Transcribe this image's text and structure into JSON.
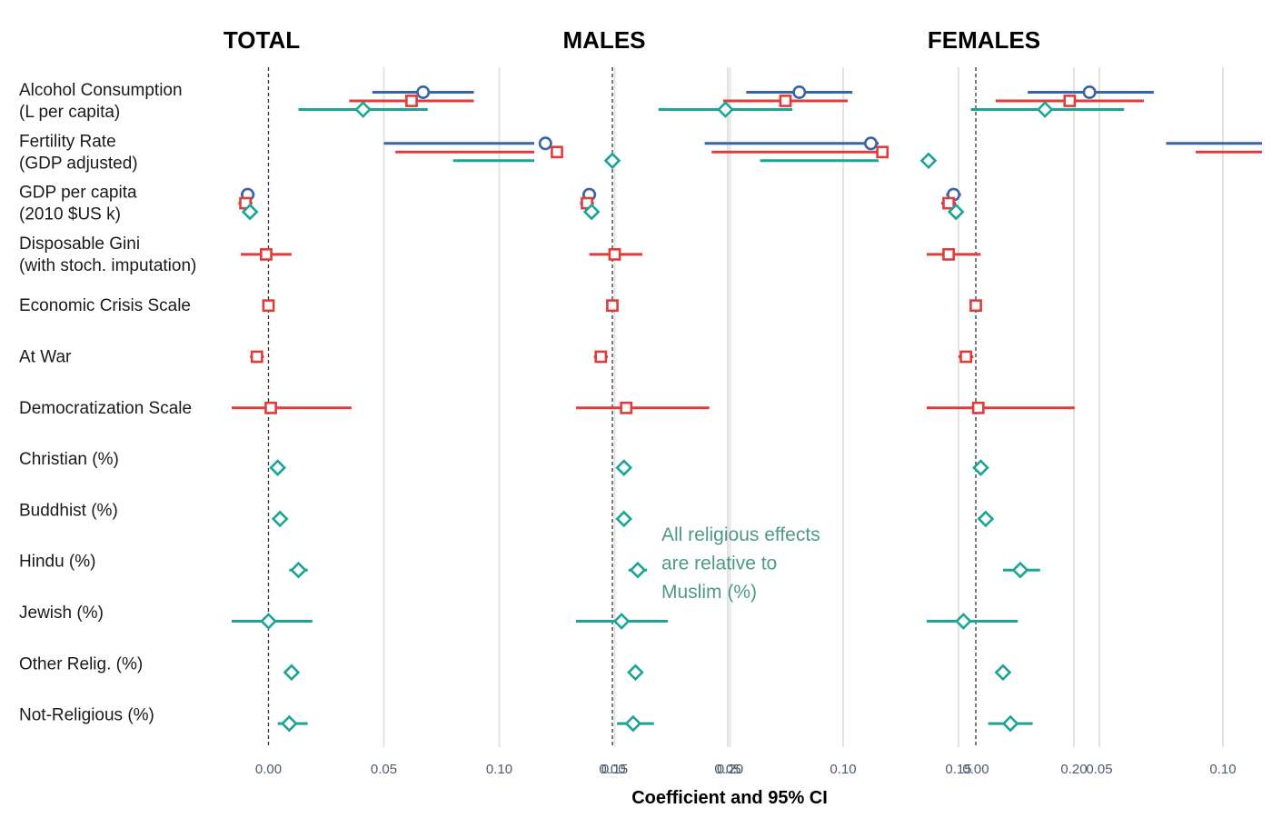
{
  "chart_data": {
    "type": "scatter",
    "x_axis_title": "Coefficient and 95% CI",
    "x_ticks": [
      "0.00",
      "0.05",
      "0.10",
      "0.15",
      "0.20"
    ],
    "x_tick_values": [
      0,
      0.05,
      0.1,
      0.15,
      0.2
    ],
    "xlim": [
      -0.105,
      0.228
    ],
    "annotation": [
      "All religious effects",
      "are relative to",
      "Muslim (%)"
    ],
    "colors": {
      "model1": "#3a64a8",
      "model2": "#e03c3c",
      "model3": "#1aa596"
    },
    "markers": {
      "model1": "circle",
      "model2": "square",
      "model3": "diamond"
    },
    "rows": [
      [
        "Alcohol Consumption",
        "(L per capita)"
      ],
      [
        "Fertility Rate",
        "(GDP adjusted)"
      ],
      [
        "GDP per capita",
        "(2010 $US k)"
      ],
      [
        "Disposable Gini",
        "(with stoch. imputation)"
      ],
      [
        "Economic Crisis Scale"
      ],
      [
        "At War"
      ],
      [
        "Democratization Scale"
      ],
      [
        "Christian (%)"
      ],
      [
        "Buddhist (%)"
      ],
      [
        "Hindu (%)"
      ],
      [
        "Jewish (%)"
      ],
      [
        "Other Relig. (%)"
      ],
      [
        "Not-Religious (%)"
      ]
    ],
    "panels": [
      {
        "title": "TOTAL",
        "estimates": [
          {
            "row": 0,
            "model": "model1",
            "est": 0.067,
            "lo": 0.045,
            "hi": 0.089
          },
          {
            "row": 0,
            "model": "model2",
            "est": 0.062,
            "lo": 0.035,
            "hi": 0.089
          },
          {
            "row": 0,
            "model": "model3",
            "est": 0.041,
            "lo": 0.013,
            "hi": 0.069
          },
          {
            "row": 1,
            "model": "model1",
            "est": 0.12,
            "lo": 0.05,
            "hi": 0.19
          },
          {
            "row": 1,
            "model": "model2",
            "est": 0.125,
            "lo": 0.055,
            "hi": 0.197
          },
          {
            "row": 1,
            "model": "model3",
            "est": 0.149,
            "lo": 0.08,
            "hi": 0.219
          },
          {
            "row": 2,
            "model": "model1",
            "est": -0.009,
            "lo": -0.012,
            "hi": -0.006
          },
          {
            "row": 2,
            "model": "model2",
            "est": -0.01,
            "lo": -0.013,
            "hi": -0.007
          },
          {
            "row": 2,
            "model": "model3",
            "est": -0.008,
            "lo": -0.011,
            "hi": -0.005
          },
          {
            "row": 3,
            "model": "model2",
            "est": -0.001,
            "lo": -0.012,
            "hi": 0.01
          },
          {
            "row": 4,
            "model": "model2",
            "est": 0.0,
            "lo": -0.002,
            "hi": 0.002
          },
          {
            "row": 5,
            "model": "model2",
            "est": -0.005,
            "lo": -0.008,
            "hi": -0.002
          },
          {
            "row": 6,
            "model": "model2",
            "est": 0.001,
            "lo": -0.031,
            "hi": 0.036
          },
          {
            "row": 7,
            "model": "model3",
            "est": 0.004,
            "lo": 0.002,
            "hi": 0.006
          },
          {
            "row": 8,
            "model": "model3",
            "est": 0.005,
            "lo": 0.003,
            "hi": 0.007
          },
          {
            "row": 9,
            "model": "model3",
            "est": 0.013,
            "lo": 0.009,
            "hi": 0.017
          },
          {
            "row": 10,
            "model": "model3",
            "est": 0.0,
            "lo": -0.018,
            "hi": 0.019
          },
          {
            "row": 11,
            "model": "model3",
            "est": 0.01,
            "lo": 0.007,
            "hi": 0.013
          },
          {
            "row": 12,
            "model": "model3",
            "est": 0.009,
            "lo": 0.004,
            "hi": 0.017
          }
        ]
      },
      {
        "title": "MALES",
        "estimates": [
          {
            "row": 0,
            "model": "model1",
            "est": 0.081,
            "lo": 0.058,
            "hi": 0.104
          },
          {
            "row": 0,
            "model": "model2",
            "est": 0.075,
            "lo": 0.048,
            "hi": 0.102
          },
          {
            "row": 0,
            "model": "model3",
            "est": 0.049,
            "lo": 0.02,
            "hi": 0.078
          },
          {
            "row": 1,
            "model": "model1",
            "est": 0.112,
            "lo": 0.04,
            "hi": 0.184
          },
          {
            "row": 1,
            "model": "model2",
            "est": 0.117,
            "lo": 0.043,
            "hi": 0.191
          },
          {
            "row": 1,
            "model": "model3",
            "est": 0.137,
            "lo": 0.064,
            "hi": 0.21
          },
          {
            "row": 2,
            "model": "model1",
            "est": -0.01,
            "lo": -0.013,
            "hi": -0.007
          },
          {
            "row": 2,
            "model": "model2",
            "est": -0.011,
            "lo": -0.014,
            "hi": -0.008
          },
          {
            "row": 2,
            "model": "model3",
            "est": -0.009,
            "lo": -0.012,
            "hi": -0.006
          },
          {
            "row": 3,
            "model": "model2",
            "est": 0.001,
            "lo": -0.01,
            "hi": 0.013
          },
          {
            "row": 4,
            "model": "model2",
            "est": 0.0,
            "lo": -0.002,
            "hi": 0.002
          },
          {
            "row": 5,
            "model": "model2",
            "est": -0.005,
            "lo": -0.008,
            "hi": -0.002
          },
          {
            "row": 6,
            "model": "model2",
            "est": 0.006,
            "lo": -0.028,
            "hi": 0.042
          },
          {
            "row": 7,
            "model": "model3",
            "est": 0.005,
            "lo": 0.003,
            "hi": 0.007
          },
          {
            "row": 8,
            "model": "model3",
            "est": 0.005,
            "lo": 0.003,
            "hi": 0.007
          },
          {
            "row": 9,
            "model": "model3",
            "est": 0.011,
            "lo": 0.007,
            "hi": 0.015
          },
          {
            "row": 10,
            "model": "model3",
            "est": 0.004,
            "lo": -0.016,
            "hi": 0.024
          },
          {
            "row": 11,
            "model": "model3",
            "est": 0.01,
            "lo": 0.007,
            "hi": 0.013
          },
          {
            "row": 12,
            "model": "model3",
            "est": 0.009,
            "lo": 0.002,
            "hi": 0.018
          }
        ]
      },
      {
        "title": "FEMALES",
        "estimates": [
          {
            "row": 0,
            "model": "model1",
            "est": 0.046,
            "lo": 0.021,
            "hi": 0.072
          },
          {
            "row": 0,
            "model": "model2",
            "est": 0.038,
            "lo": 0.008,
            "hi": 0.068
          },
          {
            "row": 0,
            "model": "model3",
            "est": 0.028,
            "lo": -0.002,
            "hi": 0.06
          },
          {
            "row": 1,
            "model": "model1",
            "est": 0.157,
            "lo": 0.077,
            "hi": 0.237
          },
          {
            "row": 1,
            "model": "model2",
            "est": 0.17,
            "lo": 0.089,
            "hi": 0.251
          },
          {
            "row": 1,
            "model": "model3",
            "est": 0.202,
            "lo": 0.124,
            "hi": 0.28
          },
          {
            "row": 2,
            "model": "model1",
            "est": -0.009,
            "lo": -0.012,
            "hi": -0.006
          },
          {
            "row": 2,
            "model": "model2",
            "est": -0.011,
            "lo": -0.014,
            "hi": -0.008
          },
          {
            "row": 2,
            "model": "model3",
            "est": -0.008,
            "lo": -0.011,
            "hi": -0.005
          },
          {
            "row": 3,
            "model": "model2",
            "est": -0.011,
            "lo": -0.024,
            "hi": 0.002
          },
          {
            "row": 4,
            "model": "model2",
            "est": 0.0,
            "lo": -0.002,
            "hi": 0.002
          },
          {
            "row": 5,
            "model": "model2",
            "est": -0.004,
            "lo": -0.007,
            "hi": -0.001
          },
          {
            "row": 6,
            "model": "model2",
            "est": 0.001,
            "lo": -0.038,
            "hi": 0.04
          },
          {
            "row": 7,
            "model": "model3",
            "est": 0.002,
            "lo": 0.0,
            "hi": 0.004
          },
          {
            "row": 8,
            "model": "model3",
            "est": 0.004,
            "lo": 0.001,
            "hi": 0.007
          },
          {
            "row": 9,
            "model": "model3",
            "est": 0.018,
            "lo": 0.011,
            "hi": 0.026
          },
          {
            "row": 10,
            "model": "model3",
            "est": -0.005,
            "lo": -0.025,
            "hi": 0.017
          },
          {
            "row": 11,
            "model": "model3",
            "est": 0.011,
            "lo": 0.008,
            "hi": 0.014
          },
          {
            "row": 12,
            "model": "model3",
            "est": 0.014,
            "lo": 0.005,
            "hi": 0.023
          }
        ]
      }
    ]
  }
}
